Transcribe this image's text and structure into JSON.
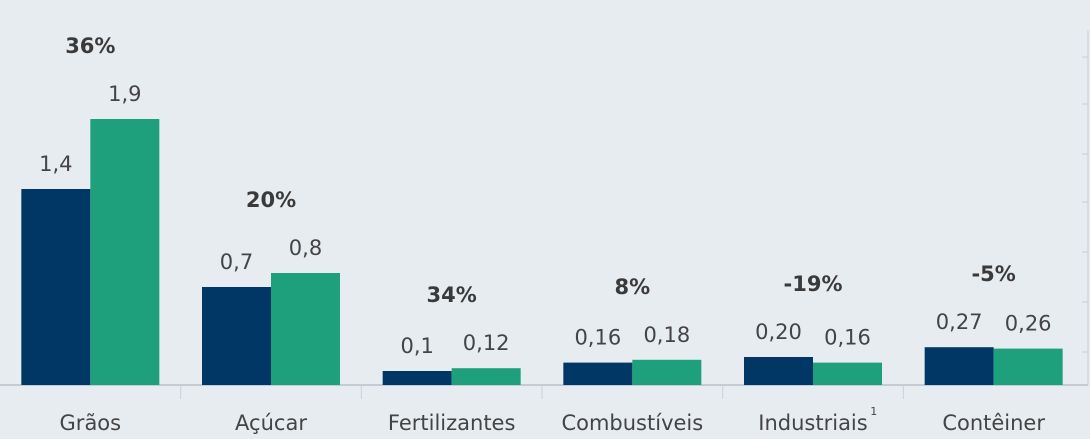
{
  "chart_data": {
    "type": "bar",
    "categories": [
      "Grãos",
      "Açúcar",
      "Fertilizantes",
      "Combustíveis",
      "Industriais",
      "Contêiner"
    ],
    "category_superscript": {
      "index": 4,
      "text": "1"
    },
    "series": [
      {
        "color": "#003764",
        "values": [
          1.4,
          0.7,
          0.1,
          0.16,
          0.2,
          0.27
        ],
        "value_labels": [
          "1,4",
          "0,7",
          "0,1",
          "0,16",
          "0,20",
          "0,27"
        ]
      },
      {
        "color": "#1fa07c",
        "values": [
          1.9,
          0.8,
          0.12,
          0.18,
          0.16,
          0.26
        ],
        "value_labels": [
          "1,9",
          "0,8",
          "0,12",
          "0,18",
          "0,16",
          "0,26"
        ]
      }
    ],
    "annotations": [
      "36%",
      "20%",
      "34%",
      "8%",
      "-19%",
      "-5%"
    ],
    "ylim": [
      0,
      2.75
    ]
  }
}
